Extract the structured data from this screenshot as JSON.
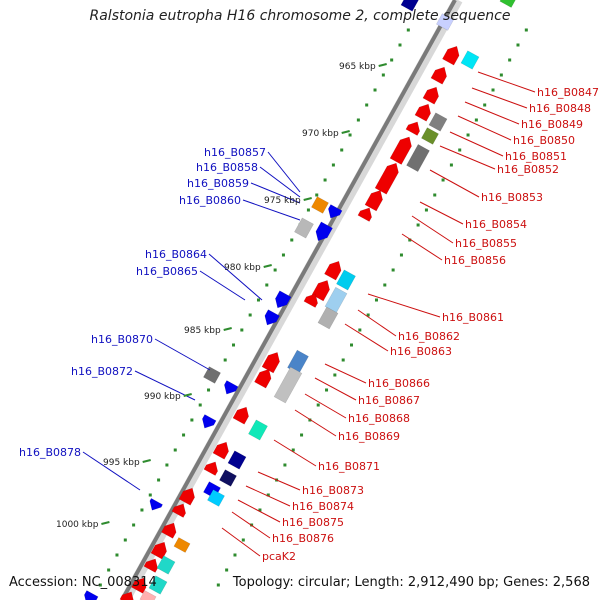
{
  "title": "Ralstonia eutropha H16 chromosome 2, complete sequence",
  "footer": {
    "accession": "Accession: NC_008314",
    "summary": "Topology: circular; Length: 2,912,490 bp; Genes: 2,568"
  },
  "colors": {
    "backbone": "#7a7a7a",
    "scale_dots": "#2e8b2e",
    "left_labels": "#1010c0",
    "right_labels": "#cc1010",
    "gene_red": "#ee0000",
    "gene_blue": "#0000ee"
  },
  "scale_labels": [
    "965 kbp",
    "970 kbp",
    "975 kbp",
    "980 kbp",
    "985 kbp",
    "990 kbp",
    "995 kbp",
    "1000 kbp"
  ],
  "left_labels": [
    "h16_B0857",
    "h16_B0858",
    "h16_B0859",
    "h16_B0860",
    "h16_B0864",
    "h16_B0865",
    "h16_B0870",
    "h16_B0872",
    "h16_B0878"
  ],
  "right_labels": [
    "h16_B0847",
    "h16_B0848",
    "h16_B0849",
    "h16_B0850",
    "h16_B0851",
    "h16_B0852",
    "h16_B0853",
    "h16_B0854",
    "h16_B0855",
    "h16_B0856",
    "h16_B0861",
    "h16_B0862",
    "h16_B0863",
    "h16_B0866",
    "h16_B0867",
    "h16_B0868",
    "h16_B0869",
    "h16_B0871",
    "h16_B0873",
    "h16_B0874",
    "h16_B0875",
    "h16_B0876",
    "pcaK2"
  ]
}
